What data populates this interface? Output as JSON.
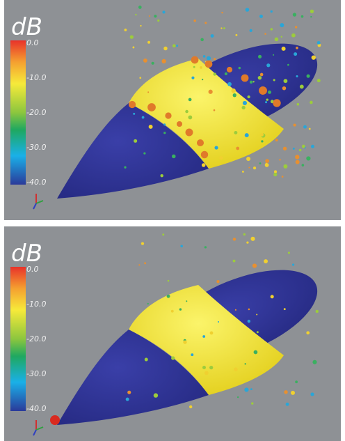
{
  "panels": [
    {
      "unit": "dB",
      "ticks": [
        "0.0",
        "-10.0",
        "-20.0",
        "-30.0",
        "-40.0"
      ]
    },
    {
      "unit": "dB",
      "ticks": [
        "0.0",
        "-10.0",
        "-20.0",
        "-30.0",
        "-40.0"
      ]
    }
  ]
}
